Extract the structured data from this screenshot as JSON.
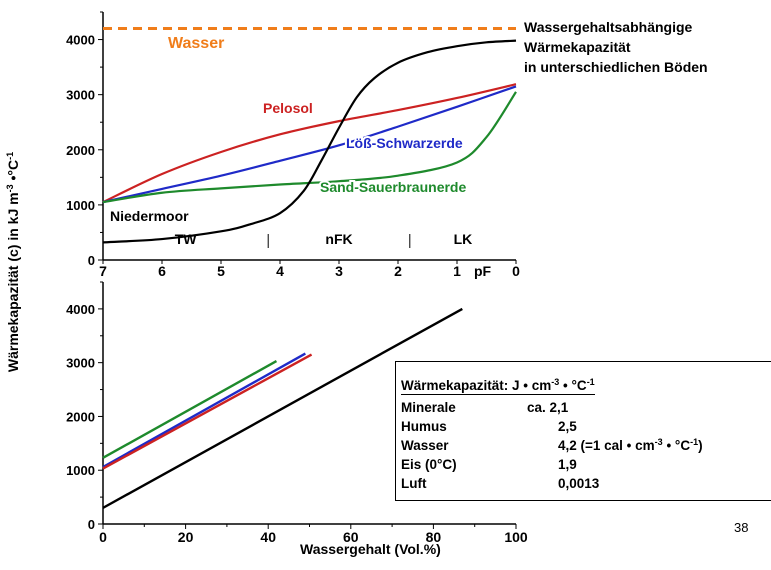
{
  "page_number": "38",
  "figure_title": [
    "Wassergehaltsabhängige",
    "Wärmekapazität",
    "in unterschiedlichen Böden"
  ],
  "shared_ylabel": {
    "text": "Wärmekapazität (c) in kJ m",
    "sup1": "-3",
    "mid": " •°C",
    "sup2": "-1"
  },
  "colors": {
    "wasser": "#f07d1a",
    "pelosol": "#cc2222",
    "loess": "#1f2ac8",
    "sand": "#1e8a2c",
    "niedermoor": "#000000"
  },
  "chart_data": [
    {
      "type": "line",
      "xaxis": {
        "label": "pF",
        "ticks": [
          "7",
          "6",
          "5",
          "4",
          "3",
          "2",
          "1",
          "0"
        ],
        "range": [
          7,
          0
        ]
      },
      "ylim": [
        0,
        4500
      ],
      "yticks": [
        "0",
        "1000",
        "2000",
        "3000",
        "4000"
      ],
      "zones": [
        {
          "label": "TW"
        },
        {
          "label": "nFK"
        },
        {
          "label": "LK"
        }
      ],
      "series": [
        {
          "name": "Wasser",
          "color": "#f07d1a",
          "dashed": true,
          "x": [
            7,
            0
          ],
          "y": [
            4200,
            4200
          ]
        },
        {
          "name": "Pelosol",
          "color": "#cc2222",
          "x": [
            7,
            6,
            5,
            4,
            3,
            2,
            1,
            0
          ],
          "y": [
            1050,
            1560,
            1960,
            2280,
            2520,
            2720,
            2940,
            3190
          ]
        },
        {
          "name": "Löß-Schwarzerde",
          "color": "#1f2ac8",
          "x": [
            7,
            6,
            5,
            4,
            3,
            2,
            1,
            0
          ],
          "y": [
            1050,
            1290,
            1530,
            1800,
            2080,
            2420,
            2780,
            3150
          ]
        },
        {
          "name": "Sand-Sauerbraunerde",
          "color": "#1e8a2c",
          "x": [
            7,
            6,
            5,
            4,
            3,
            2,
            1,
            0.5,
            0
          ],
          "y": [
            1050,
            1220,
            1300,
            1370,
            1430,
            1530,
            1770,
            2230,
            3050
          ]
        },
        {
          "name": "Niedermoor",
          "color": "#000000",
          "x": [
            7,
            6,
            5,
            4.5,
            4,
            3.6,
            3.3,
            3,
            2.7,
            2.4,
            2,
            1.5,
            1,
            0.5,
            0
          ],
          "y": [
            320,
            380,
            520,
            650,
            850,
            1250,
            1800,
            2400,
            2950,
            3300,
            3580,
            3770,
            3880,
            3950,
            3980
          ]
        }
      ]
    },
    {
      "type": "line",
      "xlabel": "Wassergehalt (Vol.%)",
      "xticks": [
        "0",
        "20",
        "40",
        "60",
        "80",
        "100"
      ],
      "xlim": [
        0,
        100
      ],
      "ylim": [
        0,
        4500
      ],
      "yticks": [
        "0",
        "1000",
        "2000",
        "3000",
        "4000"
      ],
      "series": [
        {
          "color": "#1e8a2c",
          "x": [
            0,
            42
          ],
          "y": [
            1230,
            3030
          ]
        },
        {
          "color": "#1f2ac8",
          "x": [
            0,
            49
          ],
          "y": [
            1060,
            3170
          ]
        },
        {
          "color": "#cc2222",
          "x": [
            0,
            50.5
          ],
          "y": [
            1030,
            3150
          ]
        },
        {
          "color": "#000000",
          "x": [
            0,
            87
          ],
          "y": [
            300,
            4000
          ]
        }
      ]
    }
  ],
  "table": {
    "header": "Wärmekapazität: J • cm",
    "header_sup1": "-3",
    "header_mid": " • °C",
    "header_sup2": "-1",
    "rows": [
      {
        "name": "Minerale",
        "value": "ca. 2,1"
      },
      {
        "name": "Humus",
        "value": "2,5"
      },
      {
        "name": "Wasser",
        "value": "4,2 (=1 cal • cm",
        "sup1": "-3",
        "mid": " • °C",
        "sup2": "-1",
        "tail": ")"
      },
      {
        "name": "Eis (0°C)",
        "value": "1,9"
      },
      {
        "name": "Luft",
        "value": "0,0013"
      }
    ]
  }
}
